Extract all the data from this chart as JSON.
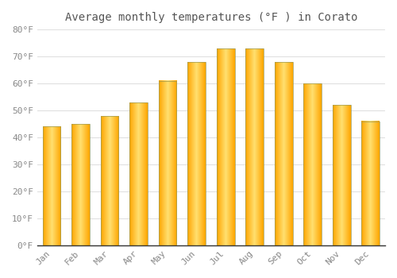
{
  "title": "Average monthly temperatures (°F ) in Corato",
  "months": [
    "Jan",
    "Feb",
    "Mar",
    "Apr",
    "May",
    "Jun",
    "Jul",
    "Aug",
    "Sep",
    "Oct",
    "Nov",
    "Dec"
  ],
  "values": [
    44,
    45,
    48,
    53,
    61,
    68,
    73,
    73,
    68,
    60,
    52,
    46
  ],
  "ylim": [
    0,
    80
  ],
  "yticks": [
    0,
    10,
    20,
    30,
    40,
    50,
    60,
    70,
    80
  ],
  "ytick_labels": [
    "0°F",
    "10°F",
    "20°F",
    "30°F",
    "40°F",
    "50°F",
    "60°F",
    "70°F",
    "80°F"
  ],
  "background_color": "#ffffff",
  "grid_color": "#e0e0e0",
  "bar_color_edge": "#FFA500",
  "bar_color_center": "#FFE090",
  "bar_border_color": "#888844",
  "title_fontsize": 10,
  "tick_fontsize": 8,
  "bar_width": 0.62
}
